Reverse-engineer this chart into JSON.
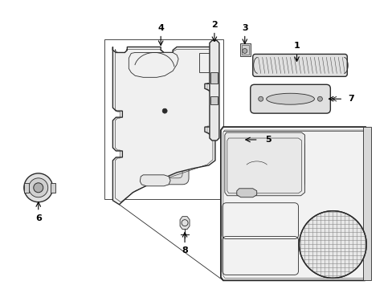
{
  "background_color": "#ffffff",
  "line_color": "#2a2a2a",
  "fig_width": 4.89,
  "fig_height": 3.6,
  "dpi": 100,
  "gray_fill": "#d8d8d8",
  "light_gray": "#e8e8e8",
  "med_gray": "#bbbbbb"
}
